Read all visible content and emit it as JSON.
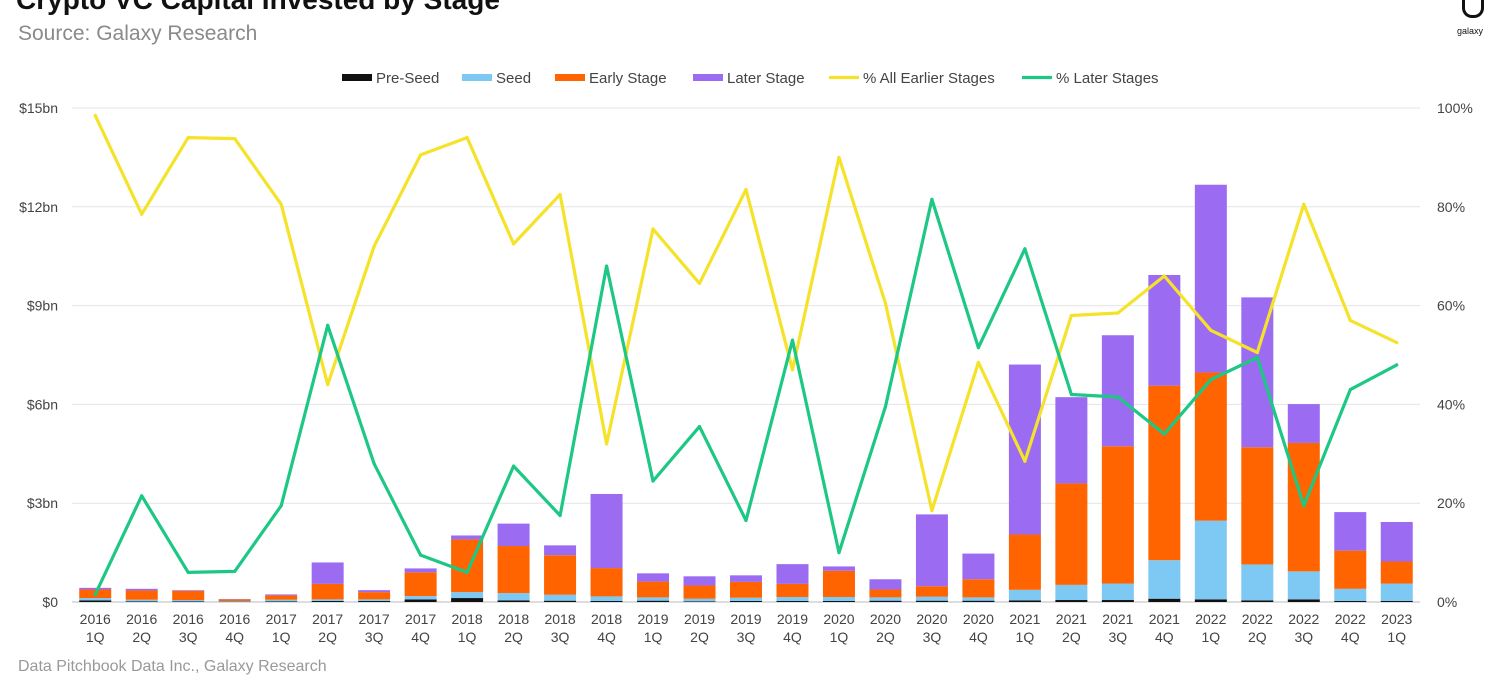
{
  "header": {
    "title": "Crypto VC Capital Invested by Stage",
    "subtitle": "Source: Galaxy Research"
  },
  "logo": {
    "text": "galaxy",
    "icon": "galaxy-logo-icon"
  },
  "footer": {
    "text": "Data Pitchbook Data Inc., Galaxy Research"
  },
  "chart_data": {
    "type": "bar",
    "stacked": true,
    "grid": true,
    "legend_position": "top",
    "categories": [
      "2016 1Q",
      "2016 2Q",
      "2016 3Q",
      "2016 4Q",
      "2017 1Q",
      "2017 2Q",
      "2017 3Q",
      "2017 4Q",
      "2018 1Q",
      "2018 2Q",
      "2018 3Q",
      "2018 4Q",
      "2019 1Q",
      "2019 2Q",
      "2019 3Q",
      "2019 4Q",
      "2020 1Q",
      "2020 2Q",
      "2020 3Q",
      "2020 4Q",
      "2021 1Q",
      "2021 2Q",
      "2021 3Q",
      "2021 4Q",
      "2022 1Q",
      "2022 2Q",
      "2022 3Q",
      "2022 4Q",
      "2023 1Q"
    ],
    "y_left": {
      "ticks": [
        "$0",
        "$3bn",
        "$6bn",
        "$9bn",
        "$12bn",
        "$15bn"
      ],
      "range": [
        0,
        15
      ],
      "unit": "bn USD"
    },
    "y_right": {
      "ticks": [
        "0%",
        "20%",
        "40%",
        "60%",
        "80%",
        "100%"
      ],
      "range": [
        0,
        100
      ],
      "unit": "%"
    },
    "bar_series": [
      {
        "name": "Pre-Seed",
        "color": "#111111",
        "values": [
          0.05,
          0.02,
          0.02,
          0.01,
          0.02,
          0.03,
          0.03,
          0.08,
          0.12,
          0.05,
          0.04,
          0.03,
          0.04,
          0.02,
          0.03,
          0.03,
          0.03,
          0.04,
          0.04,
          0.04,
          0.05,
          0.06,
          0.06,
          0.1,
          0.08,
          0.05,
          0.08,
          0.03,
          0.03
        ]
      },
      {
        "name": "Seed",
        "color": "#7ec8f4",
        "values": [
          0.07,
          0.05,
          0.04,
          0.02,
          0.05,
          0.05,
          0.05,
          0.1,
          0.18,
          0.22,
          0.18,
          0.14,
          0.1,
          0.08,
          0.1,
          0.12,
          0.12,
          0.1,
          0.12,
          0.1,
          0.32,
          0.46,
          0.5,
          1.17,
          2.39,
          1.09,
          0.85,
          0.37,
          0.53
        ]
      },
      {
        "name": "Early Stage",
        "color": "#ff6400",
        "values": [
          0.26,
          0.28,
          0.28,
          0.05,
          0.13,
          0.47,
          0.22,
          0.72,
          1.6,
          1.43,
          1.2,
          0.86,
          0.48,
          0.4,
          0.48,
          0.4,
          0.8,
          0.24,
          0.32,
          0.55,
          1.68,
          3.08,
          4.17,
          5.3,
          4.5,
          3.56,
          3.9,
          1.16,
          0.67
        ]
      },
      {
        "name": "Later Stage",
        "color": "#9b6cf2",
        "values": [
          0.05,
          0.05,
          0.02,
          0.01,
          0.03,
          0.65,
          0.06,
          0.12,
          0.12,
          0.68,
          0.3,
          2.25,
          0.25,
          0.28,
          0.2,
          0.6,
          0.13,
          0.31,
          2.18,
          0.78,
          5.16,
          2.62,
          3.37,
          3.36,
          5.7,
          4.55,
          1.18,
          1.17,
          1.2
        ]
      }
    ],
    "line_series": [
      {
        "name": "% All Earlier Stages",
        "color": "#f5e22a",
        "values": [
          98.5,
          78.5,
          94,
          93.8,
          80.5,
          44,
          72,
          90.5,
          94,
          72.5,
          82.5,
          32,
          75.5,
          64.5,
          83.5,
          47,
          90,
          60.5,
          18.5,
          48.5,
          28.5,
          58,
          58.5,
          66,
          55,
          50.5,
          80.5,
          57,
          52.5
        ]
      },
      {
        "name": "% Later Stages",
        "color": "#1dc784",
        "values": [
          1.5,
          21.5,
          6,
          6.2,
          19.5,
          56,
          28,
          9.5,
          6,
          27.5,
          17.5,
          68,
          24.5,
          35.5,
          16.5,
          53,
          10,
          39.5,
          81.5,
          51.5,
          71.5,
          42,
          41.5,
          34,
          45,
          49.5,
          19.5,
          43,
          48
        ]
      }
    ]
  }
}
